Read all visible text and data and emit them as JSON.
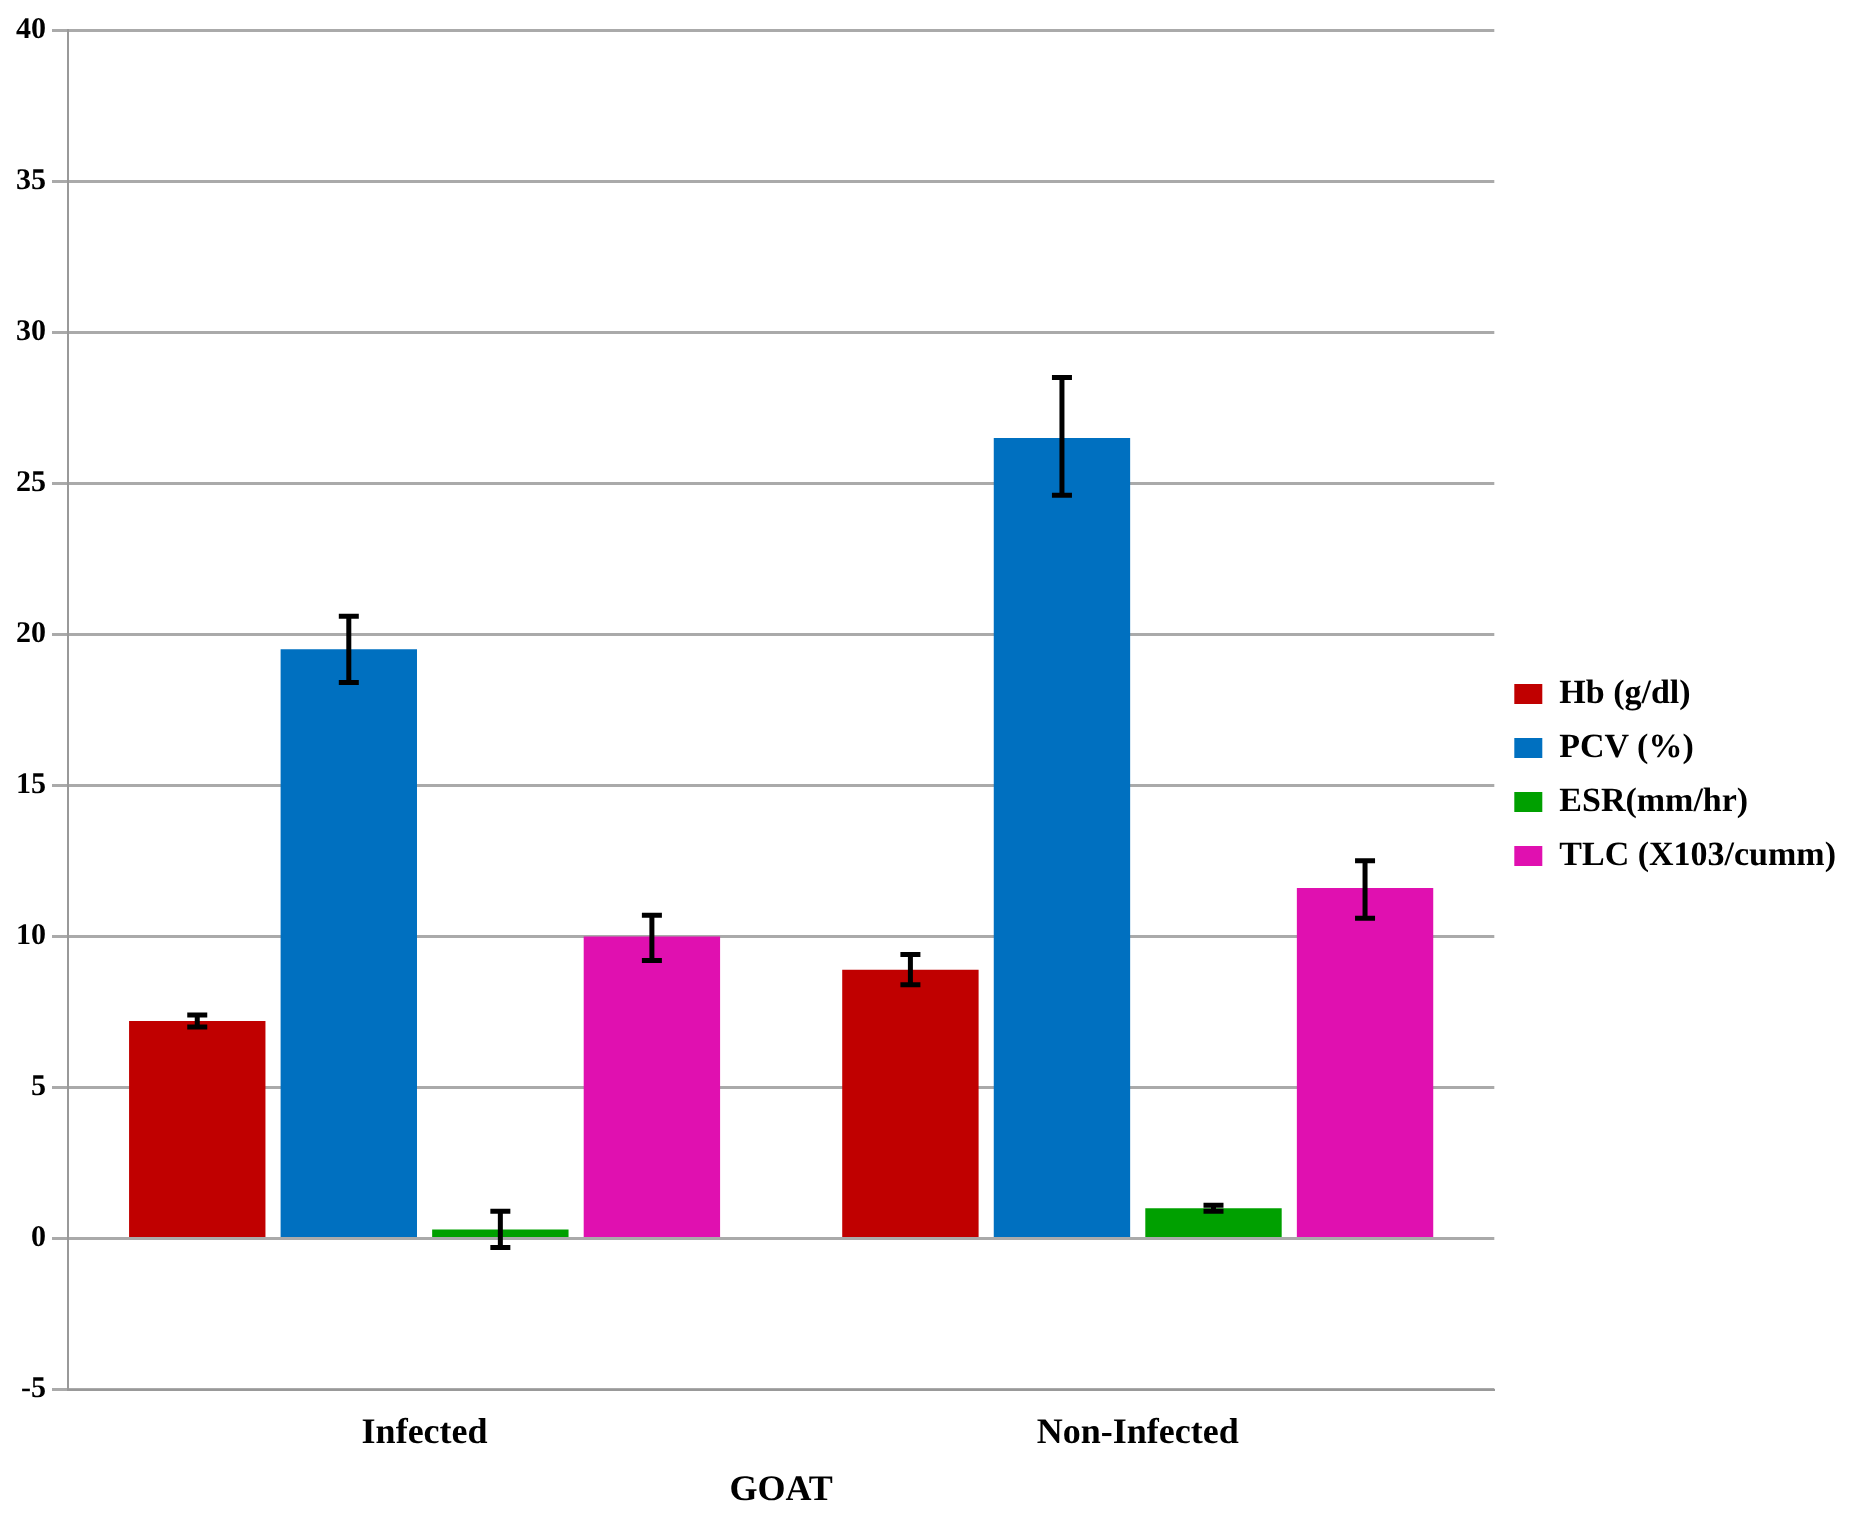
{
  "chart_data": {
    "type": "bar",
    "xlabel": "GOAT",
    "categories": [
      "Infected",
      "Non-Infected"
    ],
    "series": [
      {
        "name": "Hb (g/dl)",
        "color": "#c00000",
        "values": [
          7.2,
          8.9
        ],
        "errors": [
          [
            7.0,
            7.4
          ],
          [
            8.4,
            9.4
          ]
        ]
      },
      {
        "name": "PCV (%)",
        "color": "#0070c0",
        "values": [
          19.5,
          26.5
        ],
        "errors": [
          [
            18.4,
            20.6
          ],
          [
            24.6,
            28.5
          ]
        ]
      },
      {
        "name": "ESR(mm/hr)",
        "color": "#00a000",
        "values": [
          0.3,
          1.0
        ],
        "errors": [
          [
            -0.3,
            0.9
          ],
          [
            0.9,
            1.1
          ]
        ]
      },
      {
        "name": "TLC (X103/cumm)",
        "color": "#e010b0",
        "values": [
          10.0,
          11.6
        ],
        "errors": [
          [
            9.2,
            10.7
          ],
          [
            10.6,
            12.5
          ]
        ]
      }
    ],
    "ylim": [
      -5,
      40
    ],
    "yticks": [
      -5,
      0,
      5,
      10,
      15,
      20,
      25,
      30,
      35,
      40
    ],
    "grid": "y",
    "legend": "right"
  }
}
